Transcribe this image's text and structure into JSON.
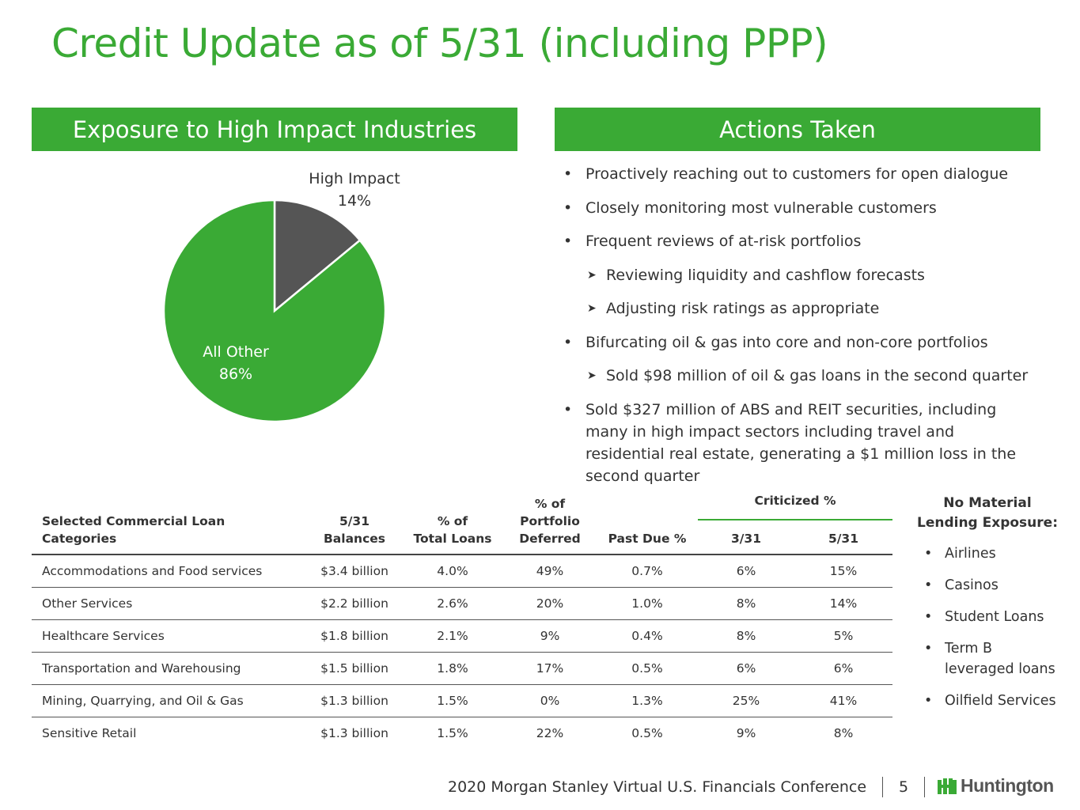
{
  "title": "Credit Update as of 5/31 (including PPP)",
  "left_header": "Exposure to High Impact Industries",
  "right_header": "Actions Taken",
  "colors": {
    "accent": "#3aaa35",
    "high_impact": "#555555",
    "text": "#333333"
  },
  "chart_data": {
    "type": "pie",
    "title": "Exposure to High Impact Industries",
    "slices": [
      {
        "label": "High Impact",
        "value": 14,
        "value_label": "14%",
        "color": "#555555"
      },
      {
        "label": "All Other",
        "value": 86,
        "value_label": "86%",
        "color": "#3aaa35"
      }
    ]
  },
  "actions": [
    {
      "level": 1,
      "text": "Proactively reaching out to customers for open dialogue"
    },
    {
      "level": 1,
      "text": "Closely monitoring most vulnerable customers"
    },
    {
      "level": 1,
      "text": "Frequent reviews of at-risk portfolios"
    },
    {
      "level": 2,
      "text": "Reviewing liquidity and cashflow forecasts"
    },
    {
      "level": 2,
      "text": "Adjusting risk ratings as appropriate"
    },
    {
      "level": 1,
      "text": "Bifurcating oil & gas into core and non-core portfolios"
    },
    {
      "level": 2,
      "text": "Sold $98 million of oil & gas loans in the second quarter"
    },
    {
      "level": 1,
      "text": "Sold $327 million of ABS and REIT securities, including many in high impact sectors including travel and residential real estate, generating a $1 million loss in the second quarter"
    }
  ],
  "table": {
    "headers": {
      "category": "Selected Commercial Loan Categories",
      "balances": "5/31\nBalances",
      "pct_total": "% of\nTotal Loans",
      "pct_deferred": "% of\nPortfolio\nDeferred",
      "past_due": "Past Due %",
      "criticized": "Criticized %",
      "crit_331": "3/31",
      "crit_531": "5/31"
    },
    "rows": [
      [
        "Accommodations and Food services",
        "$3.4 billion",
        "4.0%",
        "49%",
        "0.7%",
        "6%",
        "15%"
      ],
      [
        "Other Services",
        "$2.2 billion",
        "2.6%",
        "20%",
        "1.0%",
        "8%",
        "14%"
      ],
      [
        "Healthcare Services",
        "$1.8 billion",
        "2.1%",
        "9%",
        "0.4%",
        "8%",
        "5%"
      ],
      [
        "Transportation and Warehousing",
        "$1.5 billion",
        "1.8%",
        "17%",
        "0.5%",
        "6%",
        "6%"
      ],
      [
        "Mining, Quarrying, and Oil & Gas",
        "$1.3 billion",
        "1.5%",
        "0%",
        "1.3%",
        "25%",
        "41%"
      ],
      [
        "Sensitive Retail",
        "$1.3 billion",
        "1.5%",
        "22%",
        "0.5%",
        "9%",
        "8%"
      ]
    ]
  },
  "no_material": {
    "header": "No Material\nLending Exposure:",
    "items": [
      "Airlines",
      "Casinos",
      "Student Loans",
      "Term B leveraged loans",
      "Oilfield Services"
    ]
  },
  "footer": {
    "conference": "2020 Morgan Stanley Virtual U.S. Financials Conference",
    "page": "5",
    "logo_text": "Huntington"
  }
}
